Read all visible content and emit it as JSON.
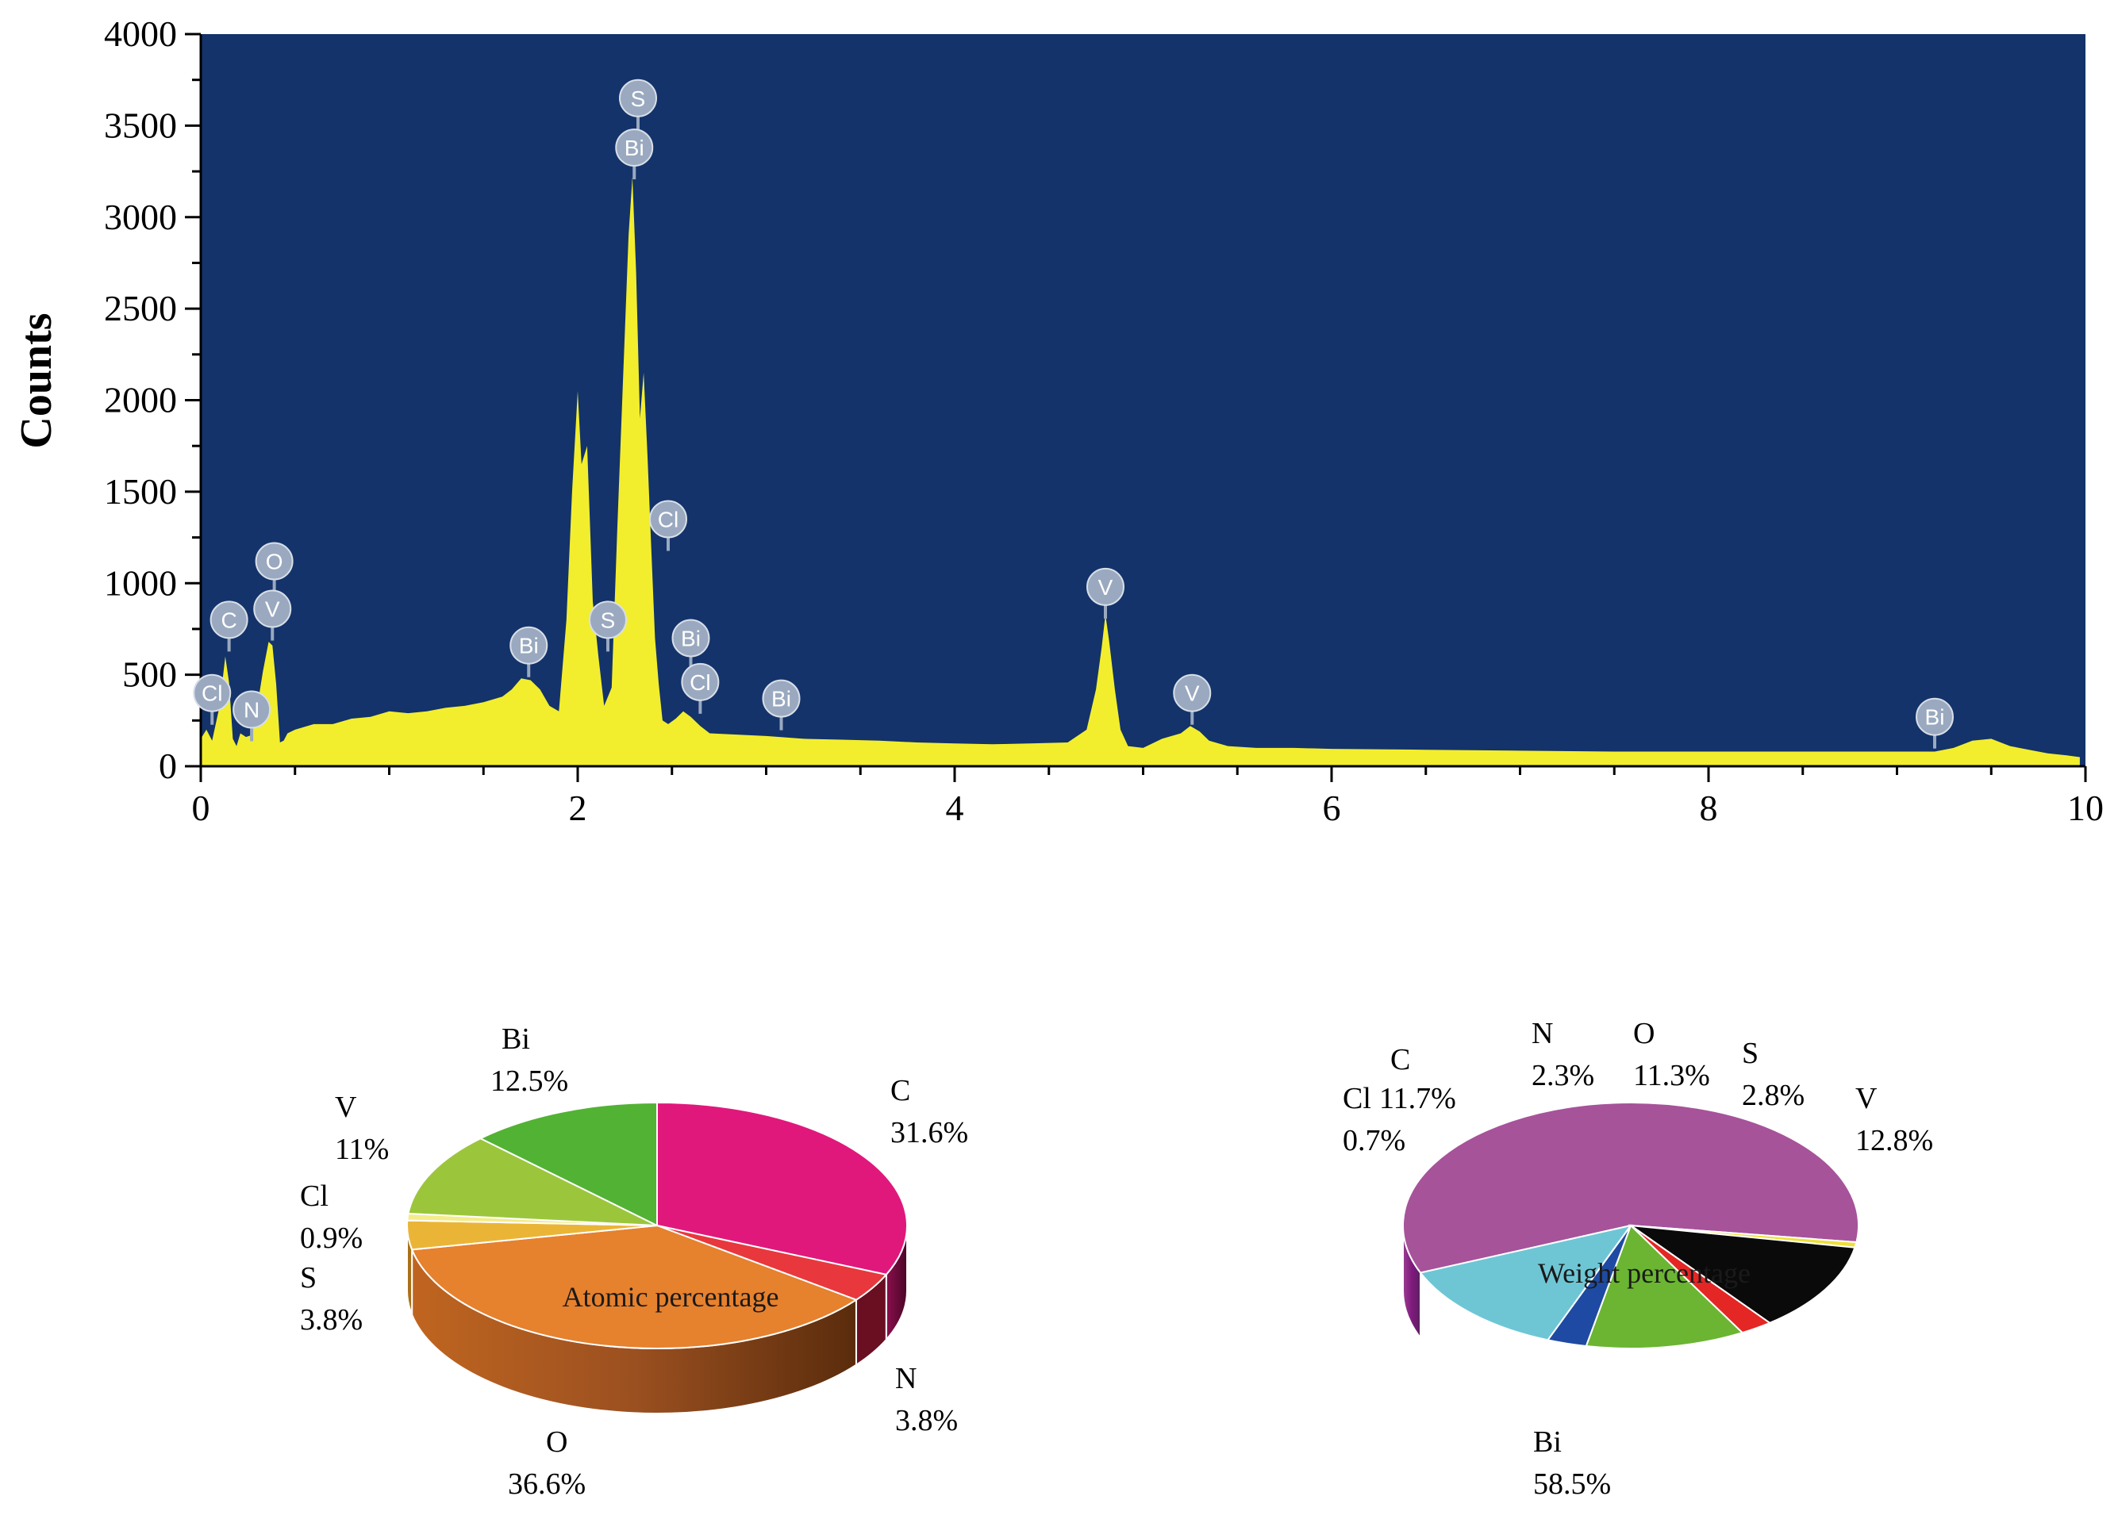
{
  "colors": {
    "plot_bg": "#13336a",
    "spectrum_fill": "#f2ee2e",
    "badge_fill": "#9aa9bf",
    "badge_text": "#ffffff",
    "axis": "#000000"
  },
  "chart_data": [
    {
      "type": "area",
      "ylabel": "Counts",
      "xlabel": "",
      "xlim": [
        0,
        10
      ],
      "ylim": [
        0,
        4000
      ],
      "x_ticks": [
        0,
        2,
        4,
        6,
        8,
        10
      ],
      "y_ticks": [
        0,
        500,
        1000,
        1500,
        2000,
        2500,
        3000,
        3500,
        4000
      ],
      "grid": false,
      "series": [
        {
          "x": [
            0,
            0.03,
            0.06,
            0.1,
            0.13,
            0.15,
            0.17,
            0.19,
            0.21,
            0.24,
            0.27,
            0.3,
            0.33,
            0.36,
            0.38,
            0.4,
            0.42,
            0.44,
            0.46,
            0.5,
            0.6,
            0.7,
            0.8,
            0.9,
            1.0,
            1.1,
            1.2,
            1.3,
            1.4,
            1.5,
            1.6,
            1.65,
            1.7,
            1.75,
            1.8,
            1.85,
            1.9,
            1.94,
            1.97,
            2.0,
            2.02,
            2.05,
            2.08,
            2.11,
            2.14,
            2.18,
            2.21,
            2.24,
            2.27,
            2.29,
            2.31,
            2.33,
            2.35,
            2.37,
            2.39,
            2.41,
            2.43,
            2.45,
            2.48,
            2.52,
            2.56,
            2.6,
            2.65,
            2.7,
            2.8,
            3.0,
            3.2,
            3.4,
            3.6,
            3.8,
            4.0,
            4.2,
            4.4,
            4.6,
            4.7,
            4.75,
            4.78,
            4.8,
            4.82,
            4.85,
            4.88,
            4.92,
            5.0,
            5.1,
            5.2,
            5.25,
            5.3,
            5.35,
            5.45,
            5.6,
            5.8,
            6.0,
            6.5,
            7.0,
            7.5,
            8.0,
            8.5,
            9.0,
            9.2,
            9.3,
            9.4,
            9.5,
            9.55,
            9.6,
            9.7,
            9.8,
            9.9,
            9.97
          ],
          "y": [
            150,
            200,
            140,
            330,
            600,
            460,
            150,
            110,
            180,
            160,
            170,
            330,
            520,
            680,
            660,
            450,
            130,
            140,
            180,
            200,
            230,
            230,
            260,
            270,
            300,
            290,
            300,
            320,
            330,
            350,
            380,
            420,
            480,
            470,
            420,
            330,
            300,
            800,
            1500,
            2050,
            1650,
            1750,
            900,
            600,
            330,
            430,
            1300,
            2100,
            2900,
            3220,
            2700,
            1900,
            2150,
            1700,
            1200,
            700,
            450,
            250,
            230,
            260,
            300,
            270,
            220,
            180,
            175,
            165,
            150,
            145,
            140,
            130,
            125,
            120,
            125,
            130,
            200,
            420,
            650,
            830,
            680,
            420,
            200,
            110,
            100,
            150,
            180,
            220,
            190,
            140,
            110,
            100,
            100,
            95,
            90,
            85,
            80,
            80,
            80,
            80,
            80,
            100,
            140,
            150,
            130,
            110,
            90,
            70,
            60,
            50
          ]
        }
      ],
      "annotations": [
        {
          "label": "Cl",
          "x": 0.06,
          "y": 400
        },
        {
          "label": "C",
          "x": 0.15,
          "y": 800
        },
        {
          "label": "N",
          "x": 0.27,
          "y": 310
        },
        {
          "label": "O",
          "x": 0.39,
          "y": 1120
        },
        {
          "label": "V",
          "x": 0.38,
          "y": 860
        },
        {
          "label": "Bi",
          "x": 1.74,
          "y": 660
        },
        {
          "label": "S",
          "x": 2.16,
          "y": 800
        },
        {
          "label": "S",
          "x": 2.32,
          "y": 3650
        },
        {
          "label": "Bi",
          "x": 2.3,
          "y": 3380
        },
        {
          "label": "Cl",
          "x": 2.48,
          "y": 1350
        },
        {
          "label": "Bi",
          "x": 2.6,
          "y": 700
        },
        {
          "label": "Cl",
          "x": 2.65,
          "y": 460
        },
        {
          "label": "Bi",
          "x": 3.08,
          "y": 370
        },
        {
          "label": "V",
          "x": 4.8,
          "y": 980
        },
        {
          "label": "V",
          "x": 5.26,
          "y": 400
        },
        {
          "label": "Bi",
          "x": 9.2,
          "y": 270
        }
      ]
    },
    {
      "type": "pie",
      "title": "Atomic percentage",
      "categories": [
        "C",
        "N",
        "O",
        "S",
        "Cl",
        "V",
        "Bi"
      ],
      "values": [
        31.6,
        3.8,
        36.6,
        3.8,
        0.9,
        11,
        12.5
      ],
      "value_labels": [
        "31.6%",
        "3.8%",
        "36.6%",
        "3.8%",
        "0.9%",
        "11%",
        "12.5%"
      ],
      "colors": [
        "#e0187c",
        "#e8383d",
        "#e6812e",
        "#eab537",
        "#f4ec8a",
        "#9bc63c",
        "#52b234"
      ]
    },
    {
      "type": "pie",
      "title": "Weight percentage",
      "categories": [
        "Bi",
        "Cl",
        "C",
        "N",
        "O",
        "S",
        "V"
      ],
      "values": [
        58.5,
        0.7,
        11.7,
        2.3,
        11.3,
        2.8,
        12.8
      ],
      "value_labels": [
        "58.5%",
        "0.7%",
        "11.7%",
        "2.3%",
        "11.3%",
        "2.8%",
        "12.8%"
      ],
      "colors": [
        "#a6539a",
        "#eee03a",
        "#0a0a0a",
        "#e42625",
        "#6bb532",
        "#1f4aa3",
        "#6ec6d5"
      ]
    }
  ]
}
